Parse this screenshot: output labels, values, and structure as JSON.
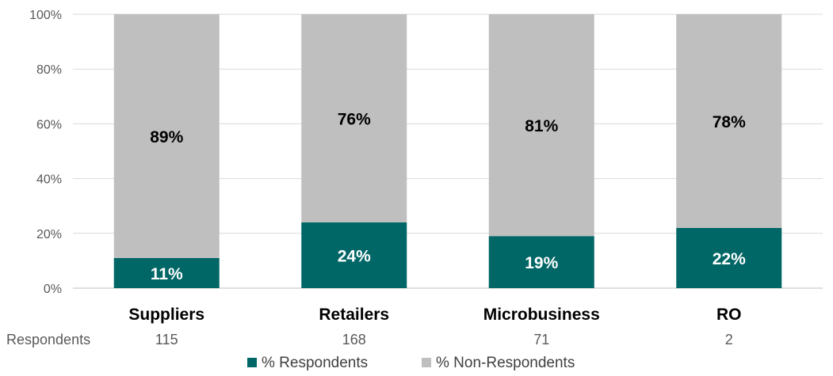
{
  "chart_data": {
    "type": "bar",
    "stacked": true,
    "categories": [
      "Suppliers",
      "Retailers",
      "Microbusiness",
      "RO"
    ],
    "series": [
      {
        "name": "% Respondents",
        "values": [
          11,
          24,
          19,
          22
        ],
        "color": "#006666",
        "labels": [
          "11%",
          "24%",
          "19%",
          "22%"
        ]
      },
      {
        "name": "% Non-Respondents",
        "values": [
          89,
          76,
          81,
          78
        ],
        "color": "#BFBFBF",
        "labels": [
          "89%",
          "76%",
          "81%",
          "78%"
        ]
      }
    ],
    "ylim": [
      0,
      100
    ],
    "yticks": [
      "0%",
      "20%",
      "40%",
      "60%",
      "80%",
      "100%"
    ],
    "grid": true,
    "legend_position": "bottom",
    "row_label": "Respondents",
    "row_values": [
      "115",
      "168",
      "71",
      "2"
    ]
  }
}
